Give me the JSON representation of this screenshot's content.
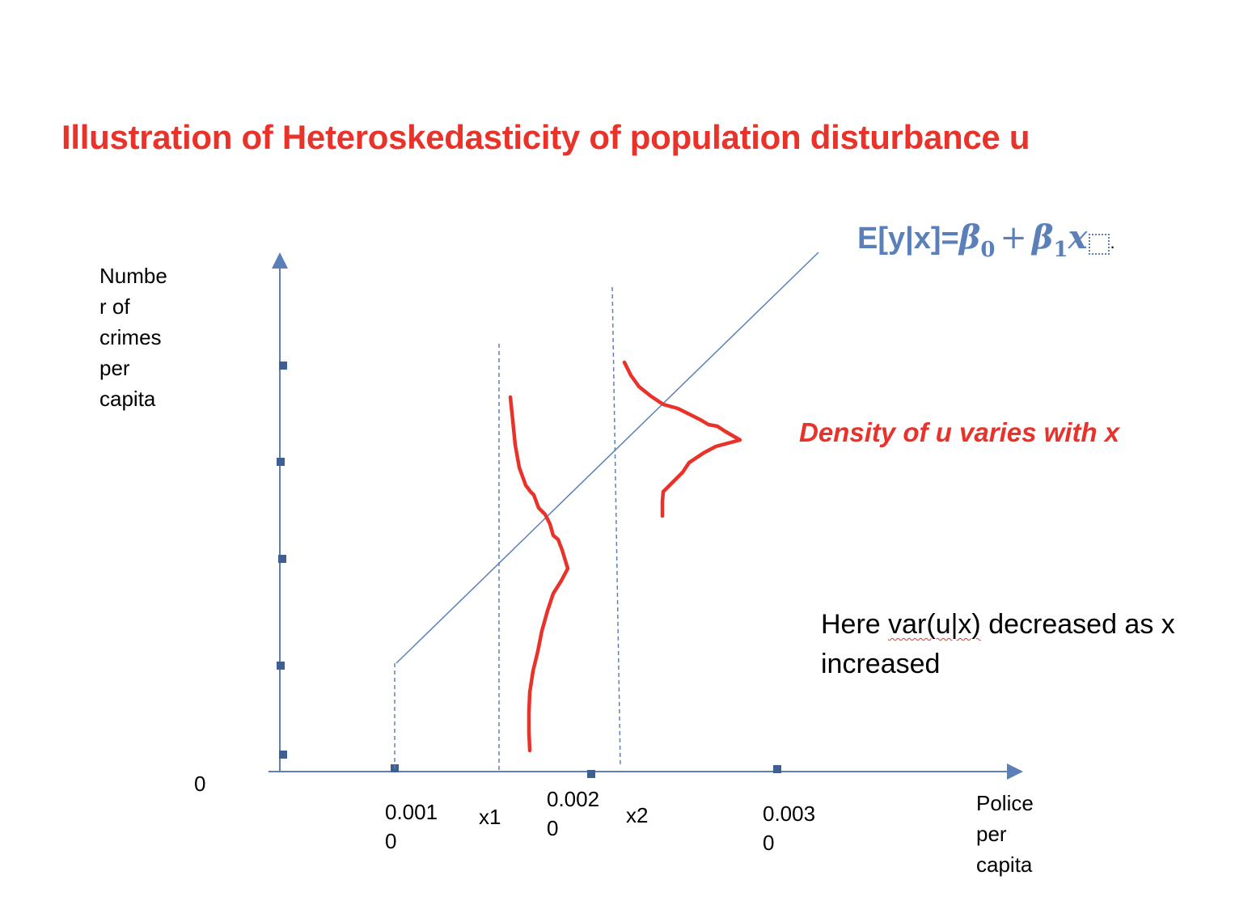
{
  "title": "Illustration of Heteroskedasticity of population disturbance u",
  "equation": {
    "lhs": "E[y|x]=",
    "beta0": "β",
    "beta0_sub": "0",
    "plus": "+",
    "beta1": "β",
    "beta1_sub": "1",
    "x": "x",
    "trailing": "."
  },
  "y_axis": {
    "label": "Number of crimes per capita",
    "label_lines": [
      "Numbe",
      "r of",
      "crimes",
      "per",
      "capita"
    ]
  },
  "origin_label": "0",
  "x_axis": {
    "label_lines": [
      "Police",
      "per",
      "capita"
    ],
    "ticks": [
      {
        "lines": [
          "0.001",
          "0"
        ]
      },
      {
        "lines": [
          "x1"
        ]
      },
      {
        "lines": [
          "0.002",
          "0"
        ]
      },
      {
        "lines": [
          "x2"
        ]
      },
      {
        "lines": [
          "0.003",
          "0"
        ]
      }
    ]
  },
  "density_label": "Density of u varies with x",
  "note": {
    "prefix": "Here ",
    "underlined": "var(u|x)",
    "suffix": " decreased as x increased"
  },
  "colors": {
    "axis": "#5b80b9",
    "curve": "#e8322a",
    "title": "#e8322a",
    "equation": "#5b80b9"
  }
}
